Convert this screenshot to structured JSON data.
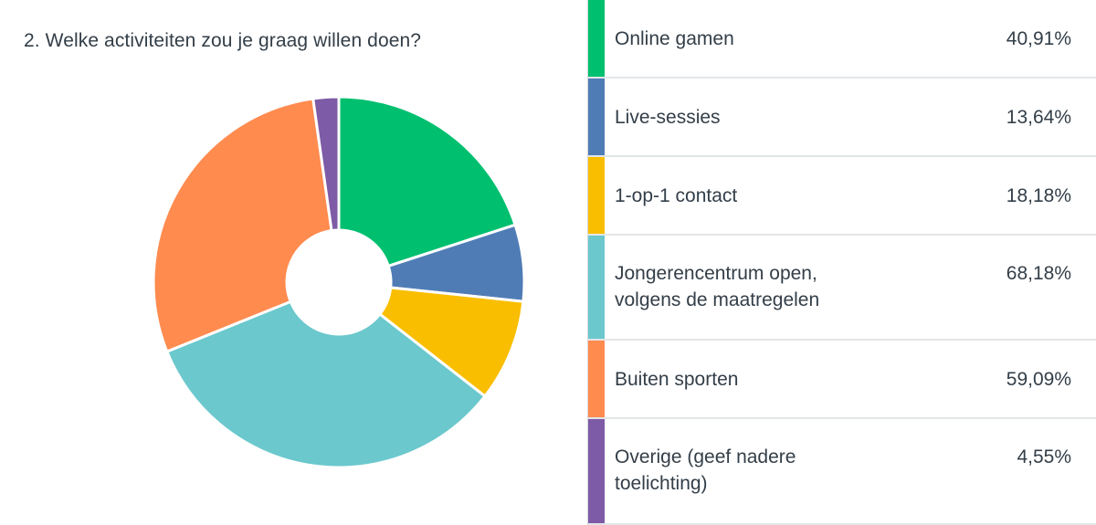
{
  "question": {
    "title": "2. Welke activiteiten zou je graag willen doen?"
  },
  "chart_data": {
    "type": "pie",
    "donut": true,
    "title": "2. Welke activiteiten zou je graag willen doen?",
    "categories": [
      "Online gamen",
      "Live-sessies",
      "1-op-1 contact",
      "Jongerencentrum open, volgens de maatregelen",
      "Buiten sporten",
      "Overige (geef nadere toelichting)"
    ],
    "values": [
      40.91,
      13.64,
      18.18,
      68.18,
      59.09,
      4.55
    ],
    "value_labels": [
      "40,91%",
      "13,64%",
      "18,18%",
      "68,18%",
      "59,09%",
      "4,55%"
    ],
    "colors": [
      "#00bf6f",
      "#507cb6",
      "#f9be00",
      "#6bc8cd",
      "#ff8b4f",
      "#7d5ba6"
    ],
    "legend": "right"
  },
  "legend": {
    "rows": [
      {
        "label_lines": [
          "Online gamen"
        ],
        "value": "40,91%",
        "color": "#00bf6f"
      },
      {
        "label_lines": [
          "Live-sessies"
        ],
        "value": "13,64%",
        "color": "#507cb6"
      },
      {
        "label_lines": [
          "1-op-1 contact"
        ],
        "value": "18,18%",
        "color": "#f9be00"
      },
      {
        "label_lines": [
          "Jongerencentrum open,",
          "volgens de maatregelen"
        ],
        "value": "68,18%",
        "color": "#6bc8cd"
      },
      {
        "label_lines": [
          "Buiten sporten"
        ],
        "value": "59,09%",
        "color": "#ff8b4f"
      },
      {
        "label_lines": [
          "Overige (geef nadere",
          "toelichting)"
        ],
        "value": "4,55%",
        "color": "#7d5ba6"
      }
    ]
  }
}
